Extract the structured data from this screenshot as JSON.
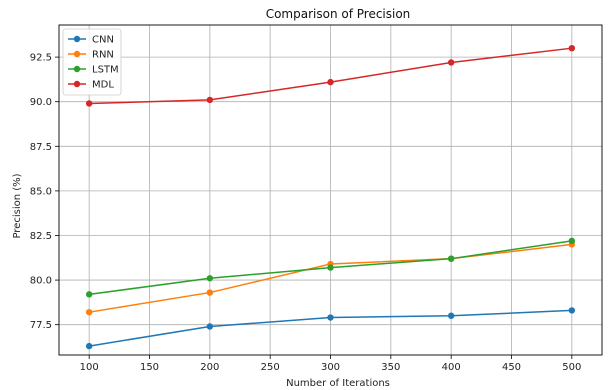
{
  "chart_data": {
    "type": "line",
    "title": "Comparison of Precision",
    "xlabel": "Number of Iterations",
    "ylabel": "Precision (%)",
    "x": [
      100,
      200,
      300,
      400,
      500
    ],
    "xlim": [
      75,
      525
    ],
    "ylim": [
      75.8,
      94.3
    ],
    "xticks": [
      100,
      150,
      200,
      250,
      300,
      350,
      400,
      450,
      500
    ],
    "yticks": [
      77.5,
      80.0,
      82.5,
      85.0,
      87.5,
      90.0,
      92.5
    ],
    "grid": true,
    "legend_position": "top-left",
    "series": [
      {
        "name": "CNN",
        "color": "#1f77b4",
        "values": [
          76.3,
          77.4,
          77.9,
          78.0,
          78.3
        ]
      },
      {
        "name": "RNN",
        "color": "#ff7f0e",
        "values": [
          78.2,
          79.3,
          80.9,
          81.2,
          82.0
        ]
      },
      {
        "name": "LSTM",
        "color": "#2ca02c",
        "values": [
          79.2,
          80.1,
          80.7,
          81.2,
          82.2
        ]
      },
      {
        "name": "MDL",
        "color": "#d62728",
        "values": [
          89.9,
          90.1,
          91.1,
          92.2,
          93.0
        ]
      }
    ]
  }
}
